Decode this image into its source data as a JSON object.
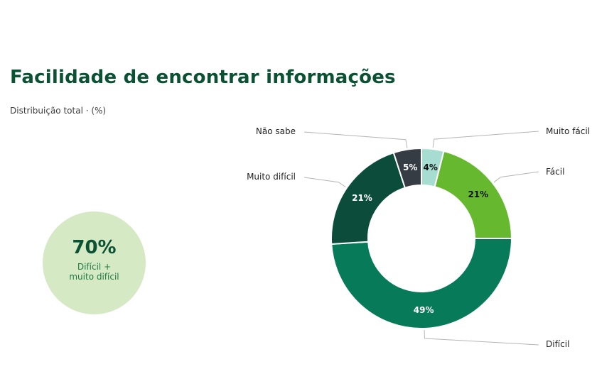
{
  "header": {
    "title": "Facilidade de encontrar informações",
    "subtitle": "Distribuição total · (%)"
  },
  "highlight": {
    "value": "70%",
    "label": "Difícil +\nmuito difícil"
  },
  "chart_data": {
    "type": "pie",
    "title": "Facilidade de encontrar informações",
    "subtitle": "Distribuição total · (%)",
    "donut": true,
    "categories": [
      "Muito fácil",
      "Fácil",
      "Difícil",
      "Muito difícil",
      "Não sabe"
    ],
    "values": [
      4,
      21,
      49,
      21,
      5
    ],
    "value_labels": [
      "4%",
      "21%",
      "49%",
      "21%",
      "5%"
    ],
    "colors": [
      "#a6ddd0",
      "#66b82e",
      "#067a59",
      "#0b4d3a",
      "#363c44"
    ],
    "label_colors": [
      "#111111",
      "#111111",
      "#ffffff",
      "#ffffff",
      "#ffffff"
    ],
    "start_angle": "12 o'clock",
    "direction": "clockwise",
    "legend": "callout labels"
  }
}
